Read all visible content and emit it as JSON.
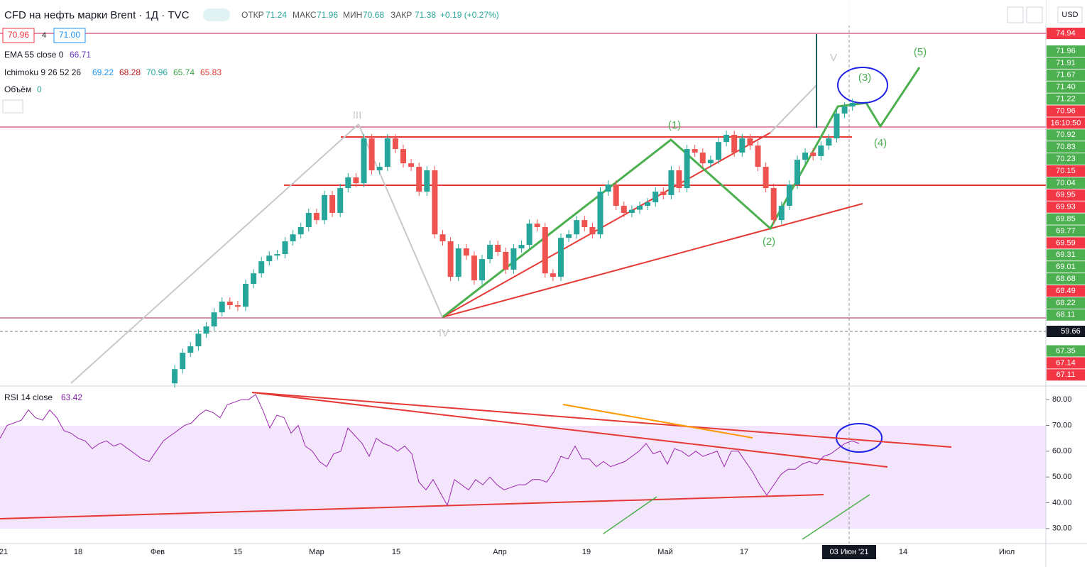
{
  "header": {
    "symbol": "CFD на нефть марки Brent · 1Д · TVC",
    "open_label": "ОТКР",
    "open": "71.24",
    "high_label": "МАКС",
    "high": "71.96",
    "low_label": "МИН",
    "low": "70.68",
    "close_label": "ЗАКР",
    "close": "71.38",
    "change": "+0.19 (+0.27%)",
    "currency": "USD"
  },
  "legend": {
    "bid": "70.96",
    "spread": "4",
    "ask": "71.00",
    "ema_label": "EMA 55 close 0",
    "ema_value": "66.71",
    "ichimoku_label": "Ichimoku 9 26 52 26",
    "ichimoku_values": [
      "69.22",
      "68.28",
      "70.96",
      "65.74",
      "65.83"
    ],
    "volume_label": "Объём",
    "volume_value": "0",
    "rsi_label": "RSI 14 close",
    "rsi_value": "63.42"
  },
  "price_scale": {
    "top_label": "74.94",
    "crosshair_label": "59.66",
    "labels": [
      {
        "text": "71.96",
        "color": "#4caf50"
      },
      {
        "text": "71.91",
        "color": "#4caf50"
      },
      {
        "text": "71.67",
        "color": "#4caf50"
      },
      {
        "text": "71.40",
        "color": "#4caf50"
      },
      {
        "text": "71.22",
        "color": "#4caf50"
      },
      {
        "text": "70.96",
        "color": "#f23645"
      },
      {
        "text": "16:10:50",
        "color": "#f23645"
      },
      {
        "text": "70.92",
        "color": "#4caf50"
      },
      {
        "text": "70.83",
        "color": "#4caf50"
      },
      {
        "text": "70.23",
        "color": "#4caf50"
      },
      {
        "text": "70.15",
        "color": "#f23645"
      },
      {
        "text": "70.04",
        "color": "#4caf50"
      },
      {
        "text": "69.95",
        "color": "#f23645"
      },
      {
        "text": "69.93",
        "color": "#f23645"
      },
      {
        "text": "69.85",
        "color": "#4caf50"
      },
      {
        "text": "69.77",
        "color": "#4caf50"
      },
      {
        "text": "69.59",
        "color": "#f23645"
      },
      {
        "text": "69.31",
        "color": "#4caf50"
      },
      {
        "text": "69.01",
        "color": "#4caf50"
      },
      {
        "text": "68.68",
        "color": "#4caf50"
      },
      {
        "text": "68.49",
        "color": "#f23645"
      },
      {
        "text": "68.22",
        "color": "#4caf50"
      },
      {
        "text": "68.11",
        "color": "#4caf50"
      },
      {
        "text": "67.35",
        "color": "#4caf50"
      },
      {
        "text": "67.14",
        "color": "#f23645"
      },
      {
        "text": "67.11",
        "color": "#f23645"
      }
    ]
  },
  "time_axis": [
    "21",
    "18",
    "Фев",
    "15",
    "Мар",
    "15",
    "Апр",
    "19",
    "Май",
    "17",
    "03 Июн '21",
    "14",
    "Июл"
  ],
  "annotations": [
    "(5)",
    "(3)",
    "(1)",
    "(4)",
    "(2)",
    "V",
    "IV",
    "III"
  ],
  "chart_data": [
    {
      "type": "candlestick",
      "up_color": "#26a69a",
      "down_color": "#ef5350",
      "ylim": [
        56.9,
        76.65
      ],
      "values": [
        57.0,
        57.73,
        58.57,
        58.9,
        59.55,
        59.92,
        60.64,
        61.19,
        61.01,
        60.93,
        62.1,
        62.64,
        63.26,
        63.55,
        63.63,
        64.28,
        64.64,
        65.01,
        65.74,
        65.37,
        66.65,
        65.74,
        67.01,
        67.56,
        67.26,
        69.56,
        67.92,
        68.1,
        69.56,
        69.01,
        68.28,
        68.1,
        66.83,
        67.92,
        64.64,
        64.28,
        62.46,
        63.92,
        63.55,
        62.28,
        63.37,
        64.1,
        63.74,
        62.83,
        63.92,
        64.1,
        65.19,
        65.01,
        62.64,
        62.46,
        64.46,
        64.64,
        65.37,
        65.01,
        64.64,
        66.83,
        67.19,
        66.1,
        65.74,
        65.9,
        66.1,
        66.28,
        66.83,
        66.65,
        67.92,
        67.01,
        69.01,
        68.83,
        68.28,
        68.46,
        69.37,
        69.74,
        68.83,
        69.56,
        69.19,
        68.1,
        67.01,
        65.37,
        66.1,
        67.19,
        68.46,
        68.83,
        68.65,
        69.19,
        69.56,
        70.83,
        71.19,
        71.38
      ]
    },
    {
      "type": "line",
      "color": "#9c27b0",
      "ylim": [
        25,
        85
      ],
      "yticks": [
        {
          "value": 80,
          "label": "80.00"
        },
        {
          "value": 70,
          "label": "70.00"
        },
        {
          "value": 60,
          "label": "60.00"
        },
        {
          "value": 50,
          "label": "50.00"
        },
        {
          "value": 40,
          "label": "40.00"
        },
        {
          "value": 30,
          "label": "30.00"
        }
      ],
      "values": [
        65,
        70,
        71,
        72,
        76,
        73,
        72,
        76,
        73,
        68,
        67,
        65,
        64,
        61,
        63,
        64,
        62,
        63,
        61,
        59,
        57,
        56,
        60,
        64,
        66,
        68,
        70,
        71,
        74,
        76,
        75,
        73,
        78,
        79,
        80,
        80,
        82,
        76,
        69,
        74,
        73,
        67,
        70,
        62,
        60,
        56,
        54,
        59,
        60,
        69,
        66,
        63,
        58,
        65,
        63,
        62,
        60,
        62,
        59,
        48,
        45,
        49,
        44,
        39,
        49,
        47,
        45,
        49,
        47,
        50,
        47,
        45,
        46,
        47,
        47,
        49,
        49,
        48,
        52,
        58,
        57,
        62,
        57,
        57,
        54,
        56,
        54,
        55,
        56,
        58,
        60,
        63,
        59,
        60,
        55,
        61,
        60,
        58,
        60,
        58,
        59,
        60,
        54,
        60,
        60,
        56,
        52,
        47,
        43,
        47,
        51,
        53,
        53,
        55,
        56,
        55,
        58,
        59,
        61,
        63,
        64,
        63
      ]
    }
  ]
}
